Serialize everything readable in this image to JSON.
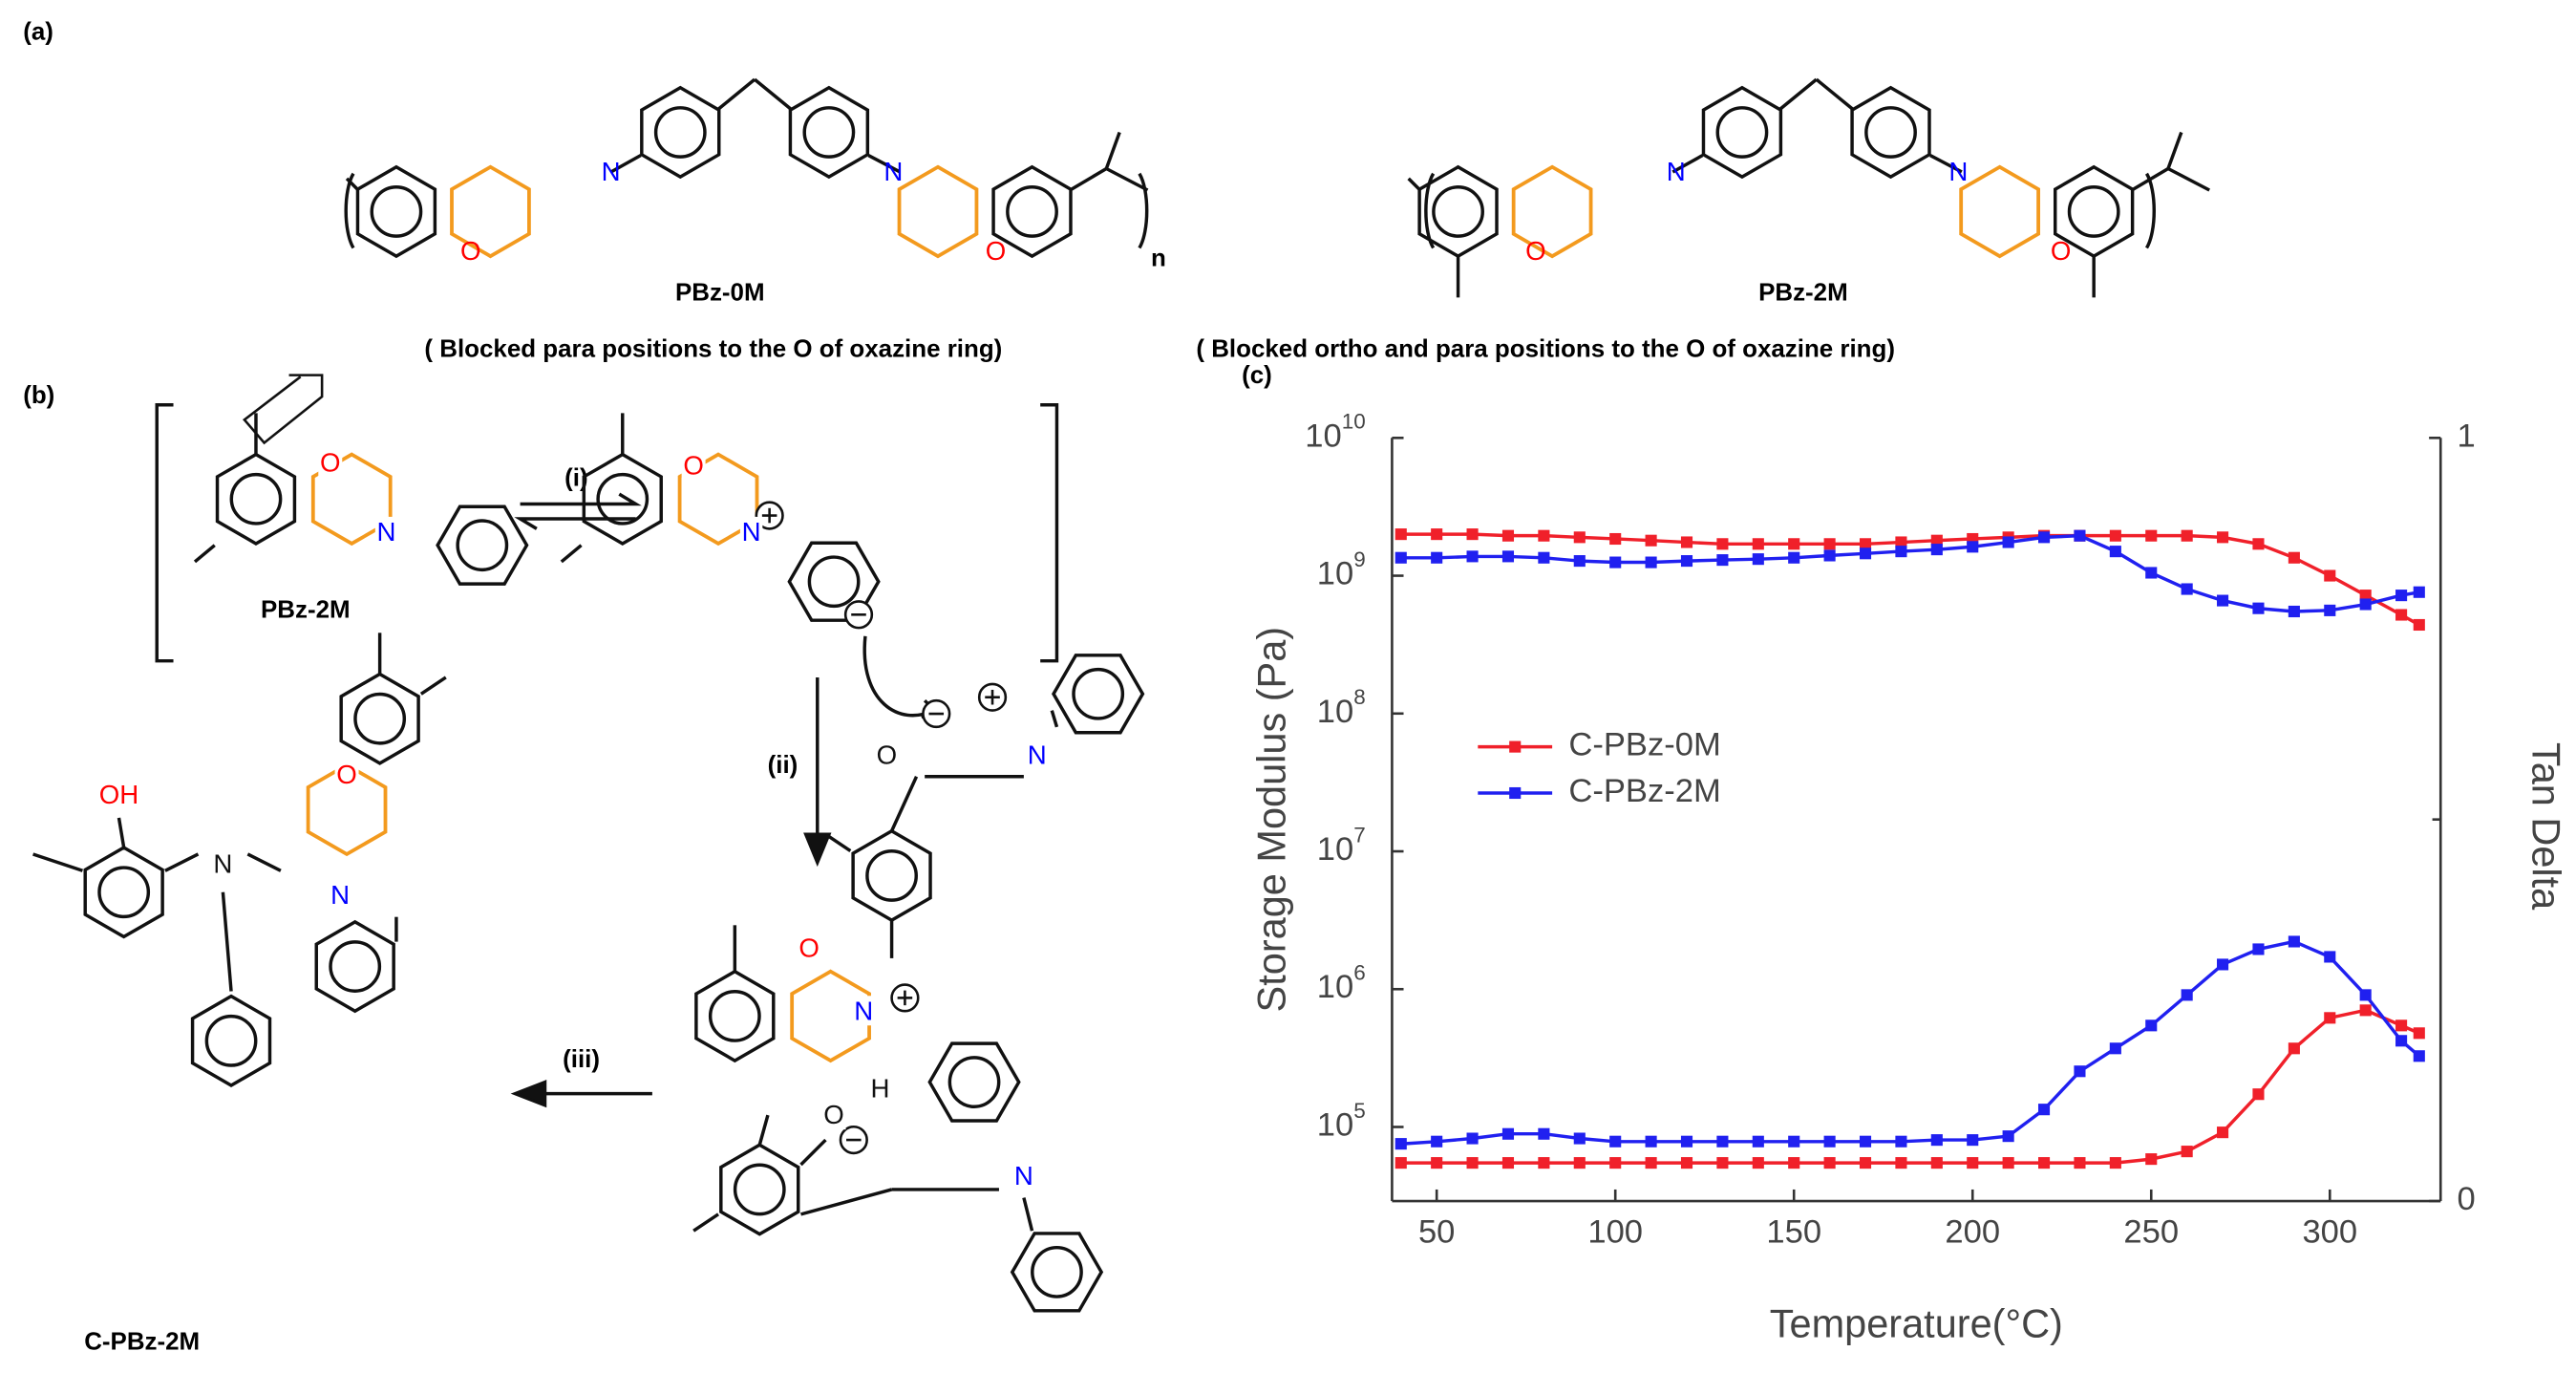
{
  "panel_a": {
    "label": "(a)",
    "structures": [
      {
        "name": "PBz-0M",
        "caption": "( Blocked para positions to the O of oxazine ring)",
        "atoms": [
          "N",
          "O",
          "N",
          "O"
        ],
        "repeat": "n"
      },
      {
        "name": "PBz-2M",
        "caption": "( Blocked ortho and para positions to the O of oxazine ring)",
        "atoms": [
          "N",
          "O",
          "N",
          "O"
        ]
      }
    ]
  },
  "panel_b": {
    "label": "(b)",
    "steps": [
      "(i)",
      "(ii)",
      "(iii)"
    ],
    "names": [
      "PBz-2M",
      "C-PBz-2M"
    ],
    "atoms": [
      "O",
      "N",
      "O",
      "N",
      "O",
      "N",
      "O",
      "N",
      "H",
      "O",
      "N",
      "OH",
      "N",
      "O",
      "N"
    ]
  },
  "chart_data": {
    "type": "line",
    "label": "(c)",
    "x_label": "Temperature(°C)",
    "y_label": "Storage Modulus (Pa)",
    "y2_label": "Tan Delta",
    "log_y": true,
    "xlim": [
      37.5,
      331
    ],
    "xticks": [
      50,
      100,
      150,
      200,
      250,
      300
    ],
    "ylim": [
      29000,
      10000000000
    ],
    "yticks": [
      {
        "value": 100000,
        "label": "10",
        "exponent": "5"
      },
      {
        "value": 1000000,
        "label": "10",
        "exponent": "6"
      },
      {
        "value": 10000000,
        "label": "10",
        "exponent": "7"
      },
      {
        "value": 100000000,
        "label": "10",
        "exponent": "8"
      },
      {
        "value": 1000000000,
        "label": "10",
        "exponent": "9"
      },
      {
        "value": 10000000000,
        "label": "10",
        "exponent": "10"
      }
    ],
    "y2lim": [
      0,
      1
    ],
    "y2ticks": [
      0,
      1
    ],
    "y2minorticks": [
      0.5
    ],
    "x": [
      40,
      50,
      60,
      70,
      80,
      90,
      100,
      110,
      120,
      130,
      140,
      150,
      160,
      170,
      180,
      190,
      200,
      210,
      220,
      230,
      240,
      250,
      260,
      270,
      280,
      290,
      300,
      310,
      320,
      325
    ],
    "series": [
      {
        "name": "C-PBz-0M",
        "color": "#f0202a",
        "values": [
          2000000000,
          2000000000,
          2000000000,
          1950000000,
          1950000000,
          1900000000,
          1850000000,
          1800000000,
          1750000000,
          1700000000,
          1700000000,
          1700000000,
          1700000000,
          1700000000,
          1750000000,
          1800000000,
          1850000000,
          1900000000,
          1950000000,
          1950000000,
          1950000000,
          1950000000,
          1950000000,
          1900000000,
          1700000000,
          1350000000,
          1000000000,
          720000000,
          520000000,
          440000000
        ],
        "tan_delta": [
          0.05,
          0.05,
          0.05,
          0.05,
          0.05,
          0.05,
          0.05,
          0.05,
          0.05,
          0.05,
          0.05,
          0.05,
          0.05,
          0.05,
          0.05,
          0.05,
          0.05,
          0.05,
          0.05,
          0.05,
          0.05,
          0.055,
          0.065,
          0.09,
          0.14,
          0.2,
          0.24,
          0.25,
          0.23,
          0.22
        ]
      },
      {
        "name": "C-PBz-2M",
        "color": "#2020f0",
        "values": [
          1350000000,
          1350000000,
          1380000000,
          1380000000,
          1350000000,
          1280000000,
          1250000000,
          1250000000,
          1280000000,
          1300000000,
          1320000000,
          1350000000,
          1400000000,
          1450000000,
          1500000000,
          1550000000,
          1620000000,
          1750000000,
          1900000000,
          1950000000,
          1500000000,
          1050000000,
          800000000,
          660000000,
          580000000,
          550000000,
          560000000,
          620000000,
          720000000,
          760000000
        ],
        "tan_delta": [
          0.075,
          0.078,
          0.082,
          0.088,
          0.088,
          0.082,
          0.078,
          0.078,
          0.078,
          0.078,
          0.078,
          0.078,
          0.078,
          0.078,
          0.078,
          0.08,
          0.08,
          0.085,
          0.12,
          0.17,
          0.2,
          0.23,
          0.27,
          0.31,
          0.33,
          0.34,
          0.32,
          0.27,
          0.21,
          0.19
        ]
      }
    ],
    "legend": "left-middle"
  }
}
